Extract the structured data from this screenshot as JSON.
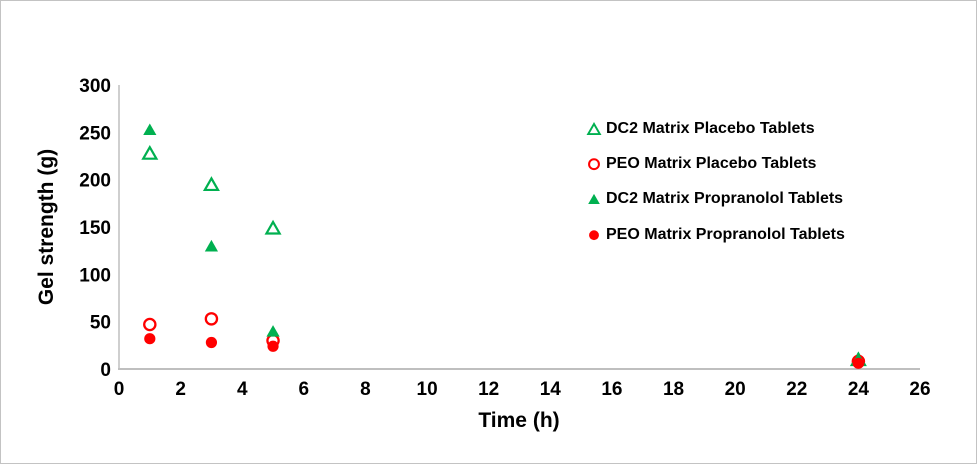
{
  "chart_data": {
    "type": "scatter",
    "title": "",
    "xlabel": "Time (h)",
    "ylabel": "Gel strength (g)",
    "xlim": [
      0,
      26
    ],
    "ylim": [
      0,
      300
    ],
    "x_ticks": [
      0,
      2,
      4,
      6,
      8,
      10,
      12,
      14,
      16,
      18,
      20,
      22,
      24,
      26
    ],
    "y_ticks": [
      0,
      50,
      100,
      150,
      200,
      250,
      300
    ],
    "grid": false,
    "legend_position": "inside-right",
    "series": [
      {
        "name": "DC2 Matrix Placebo Tablets",
        "marker": "triangle-open",
        "color": "#00B050",
        "points": [
          [
            1,
            228
          ],
          [
            3,
            195
          ],
          [
            5,
            149
          ],
          [
            24,
            10
          ]
        ]
      },
      {
        "name": "PEO Matrix Placebo Tablets",
        "marker": "circle-open",
        "color": "#FF0000",
        "points": [
          [
            1,
            47
          ],
          [
            3,
            53
          ],
          [
            5,
            30
          ],
          [
            24,
            8
          ]
        ]
      },
      {
        "name": "DC2 Matrix Propranolol Tablets",
        "marker": "triangle-filled",
        "color": "#00B050",
        "points": [
          [
            1,
            253
          ],
          [
            3,
            130
          ],
          [
            5,
            40
          ],
          [
            24,
            11
          ]
        ]
      },
      {
        "name": "PEO Matrix Propranolol Tablets",
        "marker": "circle-filled",
        "color": "#FF0000",
        "points": [
          [
            1,
            32
          ],
          [
            3,
            28
          ],
          [
            5,
            24
          ],
          [
            24,
            6
          ]
        ]
      }
    ],
    "colors": {
      "axis_line": "#BFBFBF",
      "text": "#000000",
      "green": "#00B050",
      "red": "#FF0000",
      "background": "#FFFFFF",
      "frame_border": "#C3C3C3"
    }
  }
}
